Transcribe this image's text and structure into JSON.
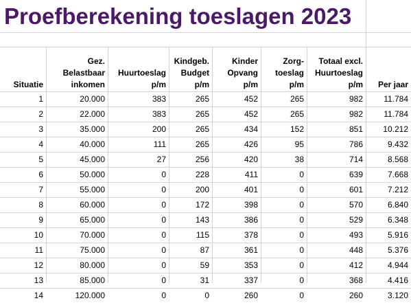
{
  "title": "Proefberekening toeslagen 2023",
  "accent_color": "#4a1968",
  "columns": [
    {
      "lines": [
        "Situatie"
      ]
    },
    {
      "lines": [
        "Gez.",
        "Belastbaar",
        "inkomen"
      ]
    },
    {
      "lines": [
        "Huurtoeslag",
        "p/m"
      ]
    },
    {
      "lines": [
        "Kindgeb.",
        "Budget",
        "p/m"
      ]
    },
    {
      "lines": [
        "Kinder",
        "Opvang",
        "p/m"
      ]
    },
    {
      "lines": [
        "Zorg-",
        "toeslag",
        "p/m"
      ]
    },
    {
      "lines": [
        "Totaal excl.",
        "Huurtoeslag",
        "p/m"
      ]
    },
    {
      "lines": [
        "Per jaar"
      ]
    }
  ],
  "rows": [
    [
      "1",
      "20.000",
      "383",
      "265",
      "452",
      "265",
      "982",
      "11.784"
    ],
    [
      "2",
      "22.000",
      "383",
      "265",
      "452",
      "265",
      "982",
      "11.784"
    ],
    [
      "3",
      "35.000",
      "200",
      "265",
      "434",
      "152",
      "851",
      "10.212"
    ],
    [
      "4",
      "40.000",
      "111",
      "265",
      "426",
      "95",
      "786",
      "9.432"
    ],
    [
      "5",
      "45.000",
      "27",
      "256",
      "420",
      "38",
      "714",
      "8.568"
    ],
    [
      "6",
      "50.000",
      "0",
      "228",
      "411",
      "0",
      "639",
      "7.668"
    ],
    [
      "7",
      "55.000",
      "0",
      "200",
      "401",
      "0",
      "601",
      "7.212"
    ],
    [
      "8",
      "60.000",
      "0",
      "172",
      "398",
      "0",
      "570",
      "6.840"
    ],
    [
      "9",
      "65.000",
      "0",
      "143",
      "386",
      "0",
      "529",
      "6.348"
    ],
    [
      "10",
      "70.000",
      "0",
      "115",
      "378",
      "0",
      "493",
      "5.916"
    ],
    [
      "11",
      "75.000",
      "0",
      "87",
      "361",
      "0",
      "448",
      "5.376"
    ],
    [
      "12",
      "80.000",
      "0",
      "59",
      "353",
      "0",
      "412",
      "4.944"
    ],
    [
      "13",
      "85.000",
      "0",
      "31",
      "337",
      "0",
      "368",
      "4.416"
    ],
    [
      "14",
      "120.000",
      "0",
      "0",
      "260",
      "0",
      "260",
      "3.120"
    ]
  ]
}
